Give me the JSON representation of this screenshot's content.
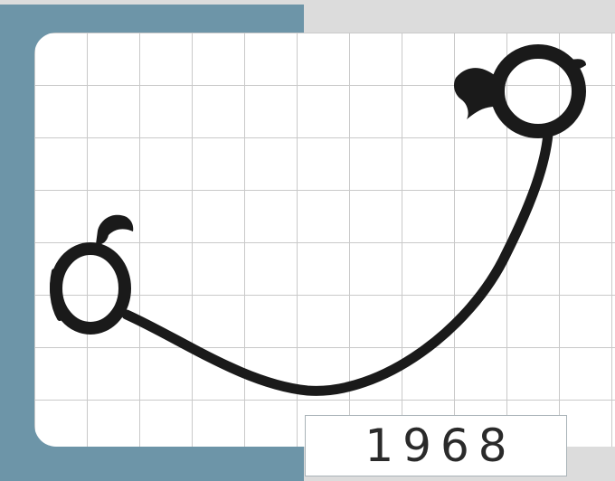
{
  "year_label": "1968",
  "colors": {
    "background": "#dcdcdc",
    "accent_block": "#6d95a8",
    "grid_card": "#ffffff",
    "grid_lines": "#c9c9c9",
    "ink": "#1a1a1a"
  },
  "icons": [
    "ring-left-icon",
    "ring-right-icon",
    "connecting-cord-icon"
  ]
}
